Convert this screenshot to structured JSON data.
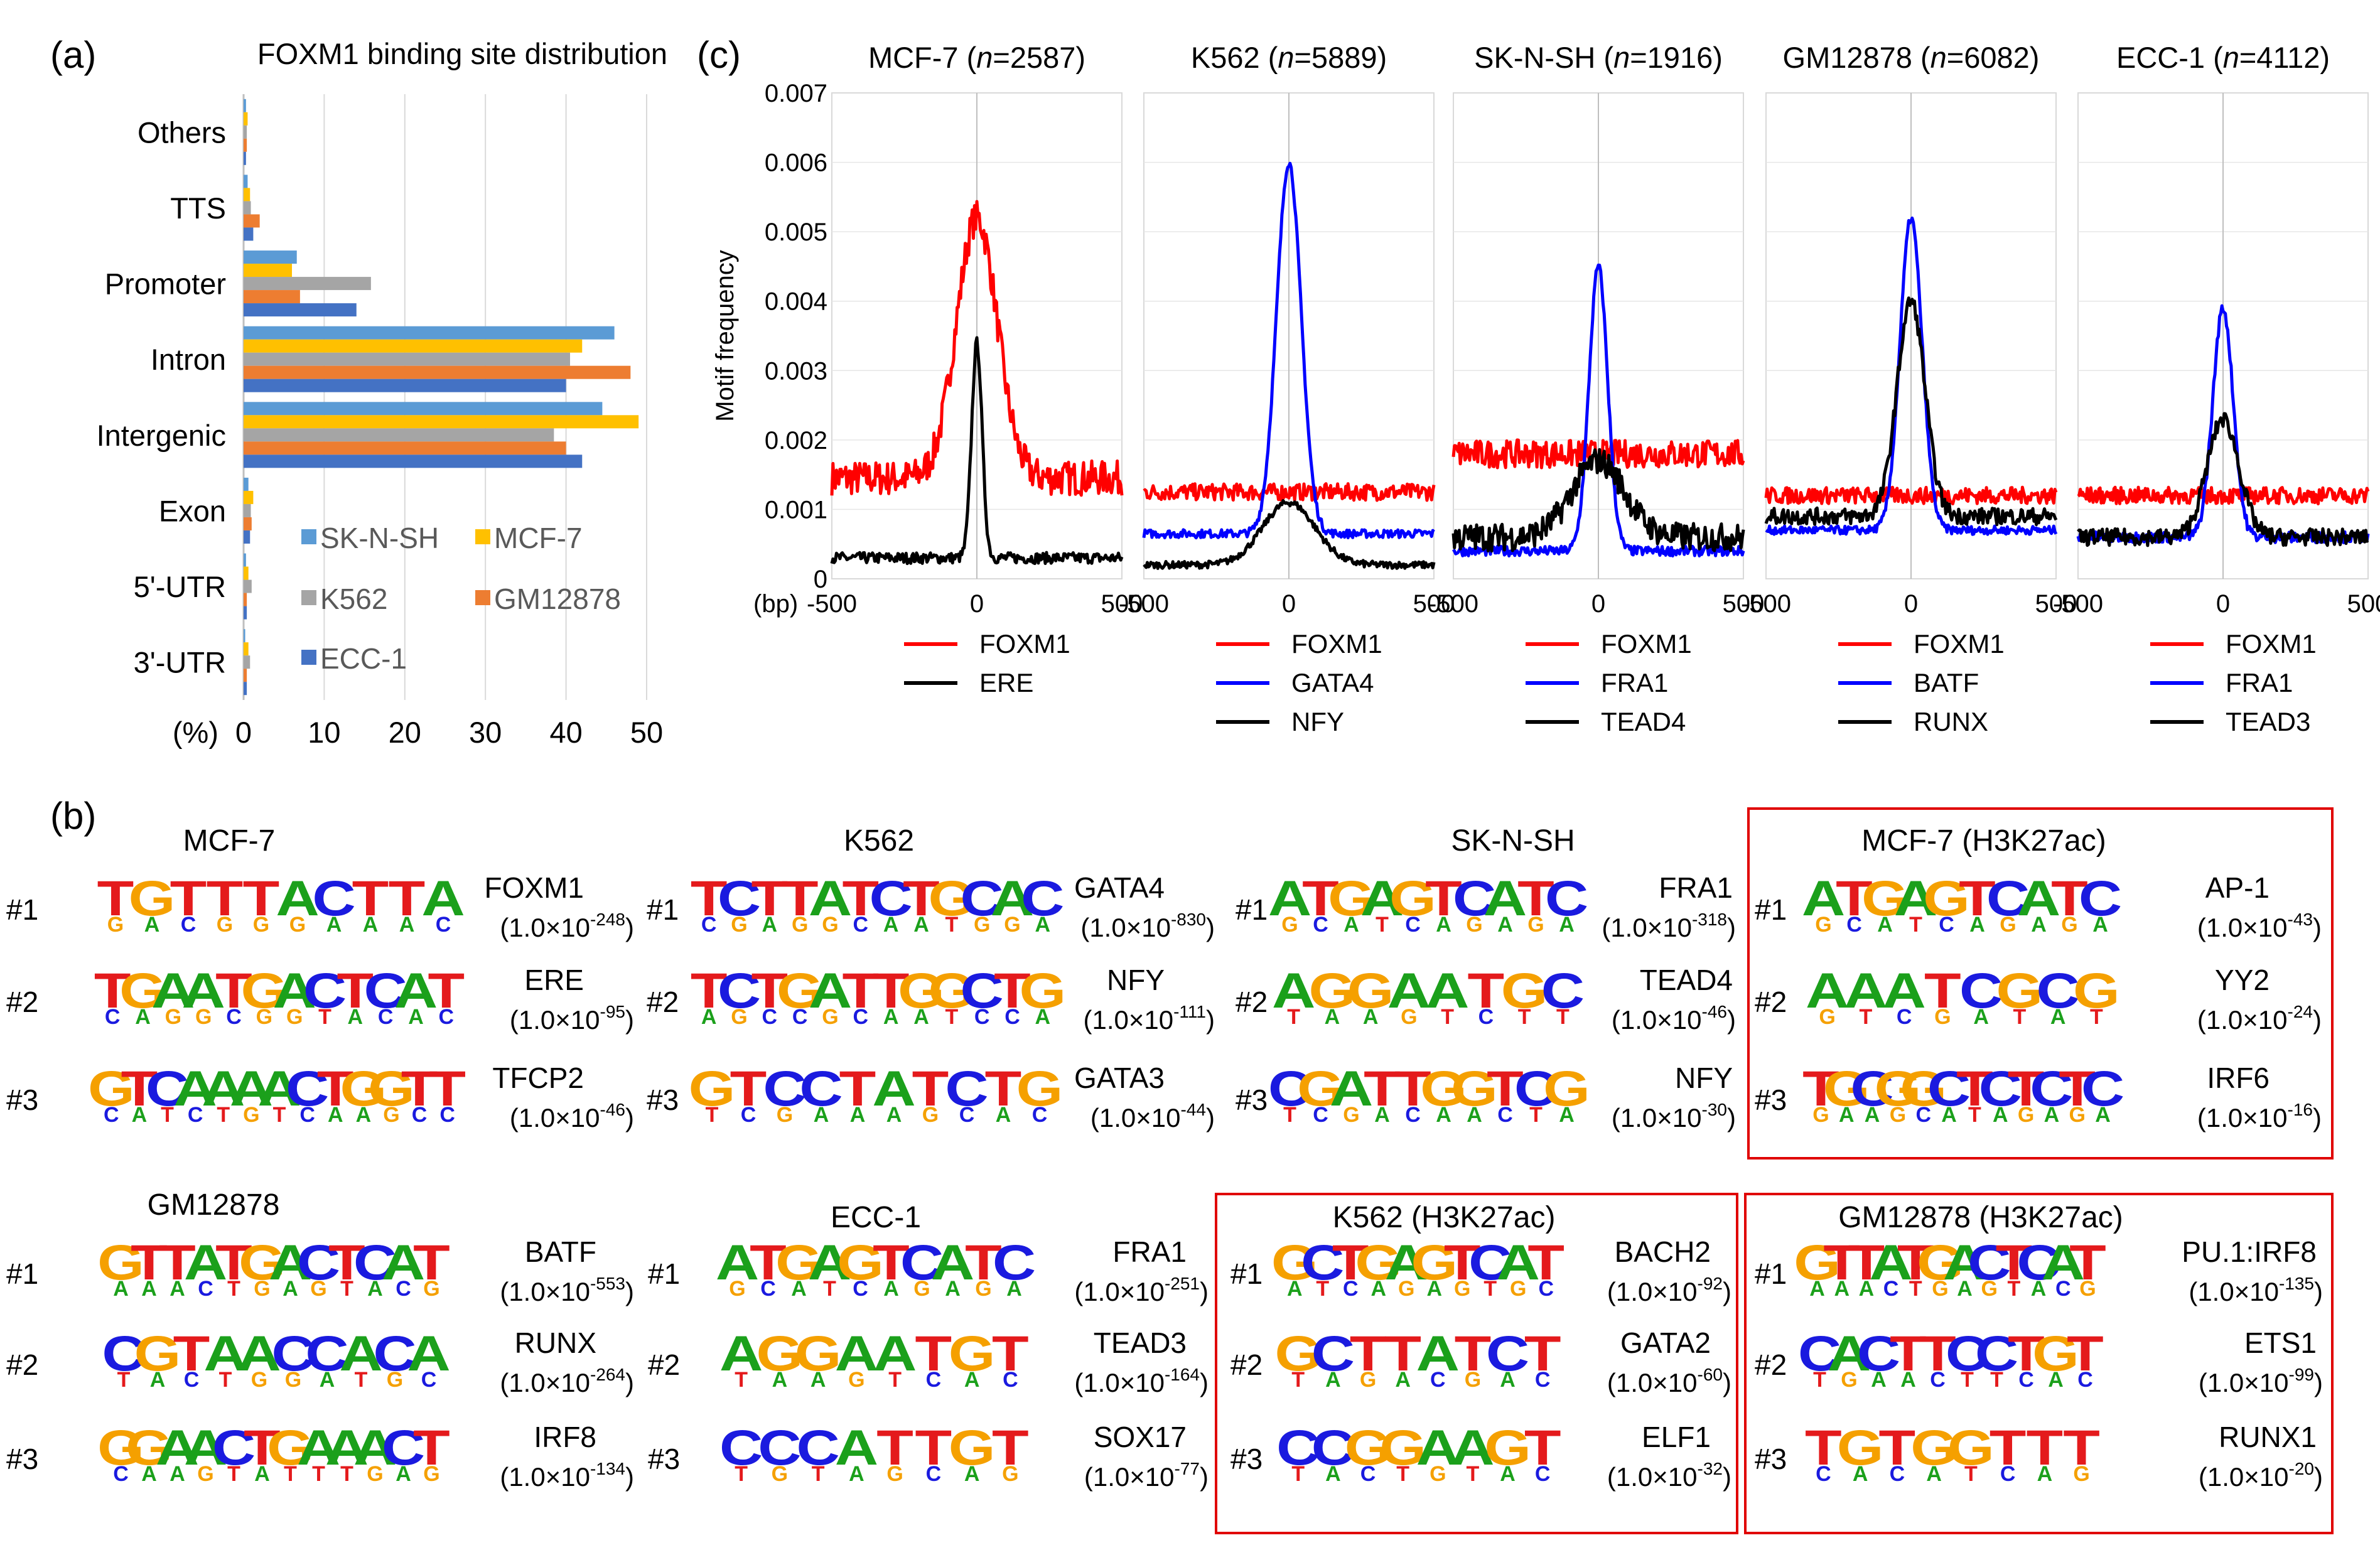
{
  "colors": {
    "SK-N-SH": "#5b9bd5",
    "MCF-7": "#ffc000",
    "K562": "#a5a5a5",
    "GM12878": "#ed7d31",
    "ECC-1": "#4472c4",
    "red": "#ff0000",
    "blue": "#0000ff",
    "black": "#000000",
    "box": "#e00000",
    "grid": "#d9d9d9",
    "A": "#1ba01b",
    "C": "#1a1adf",
    "G": "#f5a000",
    "T": "#e41a1c"
  },
  "panel_labels": {
    "a": "(a)",
    "b": "(b)",
    "c": "(c)"
  },
  "chart_data": [
    {
      "id": "a",
      "type": "bar",
      "orientation": "horizontal",
      "title": "FOXM1 binding site distribution",
      "xlabel": "(%)",
      "xlim": [
        0,
        50
      ],
      "xticks": [
        "0",
        "10",
        "20",
        "30",
        "40",
        "50"
      ],
      "categories": [
        "Others",
        "TTS",
        "Promoter",
        "Intron",
        "Intergenic",
        "Exon",
        "5'-UTR",
        "3'-UTR"
      ],
      "series": [
        {
          "name": "SK-N-SH",
          "values": [
            0.3,
            0.5,
            6.6,
            46.0,
            44.5,
            0.6,
            0.3,
            0.2
          ]
        },
        {
          "name": "MCF-7",
          "values": [
            0.5,
            0.8,
            6.0,
            42.0,
            49.0,
            1.2,
            0.6,
            0.6
          ]
        },
        {
          "name": "K562",
          "values": [
            0.4,
            0.9,
            15.8,
            40.5,
            38.5,
            0.9,
            1.0,
            0.8
          ]
        },
        {
          "name": "GM12878",
          "values": [
            0.4,
            2.0,
            7.0,
            48.0,
            40.0,
            1.0,
            0.4,
            0.4
          ]
        },
        {
          "name": "ECC-1",
          "values": [
            0.3,
            1.2,
            14.0,
            40.0,
            42.0,
            0.8,
            0.4,
            0.4
          ]
        }
      ],
      "legend": [
        "SK-N-SH",
        "MCF-7",
        "K562",
        "GM12878",
        "ECC-1"
      ]
    },
    {
      "id": "c",
      "type": "line",
      "ylabel": "Motif frequency",
      "ylim": [
        0,
        0.007
      ],
      "yticks": [
        "0",
        "0.001",
        "0.002",
        "0.003",
        "0.004",
        "0.005",
        "0.006",
        "0.007"
      ],
      "xlabel_unit": "(bp)",
      "xlim": [
        -500,
        500
      ],
      "xticks": [
        "-500",
        "0",
        "500"
      ],
      "panels": [
        {
          "title_cell": "MCF-7",
          "n_prefix": "(",
          "n_label": "n",
          "n_value": "=2587)",
          "series": [
            {
              "name": "FOXM1",
              "color": "red",
              "baseline": 0.00145,
              "peak": 0.0052,
              "width": 70,
              "noise": 0.00025
            },
            {
              "name": "ERE",
              "color": "black",
              "baseline": 0.0003,
              "peak": 0.0034,
              "width": 18,
              "noise": 8e-05
            }
          ]
        },
        {
          "title_cell": "K562",
          "n_prefix": "(",
          "n_label": "n",
          "n_value": "=5889)",
          "series": [
            {
              "name": "FOXM1",
              "color": "red",
              "baseline": 0.00125,
              "peak": 0.00125,
              "width": 80,
              "noise": 0.00012
            },
            {
              "name": "GATA4",
              "color": "blue",
              "baseline": 0.00065,
              "peak": 0.006,
              "width": 42,
              "noise": 6e-05
            },
            {
              "name": "NFY",
              "color": "black",
              "baseline": 0.0002,
              "peak": 0.0011,
              "width": 90,
              "noise": 5e-05
            }
          ]
        },
        {
          "title_cell": "SK-N-SH",
          "n_prefix": "(",
          "n_label": "n",
          "n_value": "=1916)",
          "series": [
            {
              "name": "FOXM1",
              "color": "red",
              "baseline": 0.0018,
              "peak": 0.0018,
              "width": 80,
              "noise": 0.0002
            },
            {
              "name": "FRA1",
              "color": "blue",
              "baseline": 0.0004,
              "peak": 0.0045,
              "width": 32,
              "noise": 7e-05
            },
            {
              "name": "TEAD4",
              "color": "black",
              "baseline": 0.0006,
              "peak": 0.0017,
              "width": 90,
              "noise": 0.0002
            }
          ]
        },
        {
          "title_cell": "GM12878",
          "n_prefix": "(",
          "n_label": "n",
          "n_value": "=6082)",
          "series": [
            {
              "name": "FOXM1",
              "color": "red",
              "baseline": 0.0012,
              "peak": 0.0012,
              "width": 80,
              "noise": 0.00012
            },
            {
              "name": "BATF",
              "color": "blue",
              "baseline": 0.0007,
              "peak": 0.0052,
              "width": 38,
              "noise": 6e-05
            },
            {
              "name": "RUNX",
              "color": "black",
              "baseline": 0.0009,
              "peak": 0.004,
              "width": 48,
              "noise": 0.00012
            }
          ]
        },
        {
          "title_cell": "ECC-1",
          "n_prefix": "(",
          "n_label": "n",
          "n_value": "=4112)",
          "series": [
            {
              "name": "FOXM1",
              "color": "red",
              "baseline": 0.0012,
              "peak": 0.0012,
              "width": 80,
              "noise": 0.00012
            },
            {
              "name": "FRA1",
              "color": "blue",
              "baseline": 0.0006,
              "peak": 0.0039,
              "width": 35,
              "noise": 8e-05
            },
            {
              "name": "TEAD3",
              "color": "black",
              "baseline": 0.0006,
              "peak": 0.0023,
              "width": 55,
              "noise": 0.00012
            }
          ]
        }
      ]
    }
  ],
  "motif_panels": [
    {
      "title": "MCF-7",
      "boxed": false,
      "motifs": [
        {
          "rank": "#1",
          "name": "FOXM1",
          "pval_base": "(1.0×10",
          "pval_exp": "-248",
          "pval_close": ")",
          "logo": "TGTTTACTTA",
          "under": "GACGGGAAAC"
        },
        {
          "rank": "#2",
          "name": "ERE",
          "pval_base": "(1.0×10",
          "pval_exp": "-95",
          "pval_close": ")",
          "logo": "TGAATGACTCAT",
          "under": "CAGGCGGTACAC"
        },
        {
          "rank": "#3",
          "name": "TFCP2",
          "pval_base": "(1.0×10",
          "pval_exp": "-46",
          "pval_close": ")",
          "logo": "GTCAAAACTGGTT",
          "under": "CATCTGTCAAGCC"
        }
      ]
    },
    {
      "title": "K562",
      "boxed": false,
      "motifs": [
        {
          "rank": "#1",
          "name": "GATA4",
          "pval_base": "(1.0×10",
          "pval_exp": "-830",
          "pval_close": ")",
          "logo": "TCTTATCTGCAC",
          "under": "CGAGGCAATGGA"
        },
        {
          "rank": "#2",
          "name": "NFY",
          "pval_base": "(1.0×10",
          "pval_exp": "-111",
          "pval_close": ")",
          "logo": "TCTGATTGGCTG",
          "under": "AGCCGCAATCCA"
        },
        {
          "rank": "#3",
          "name": "GATA3",
          "pval_base": "(1.0×10",
          "pval_exp": "-44",
          "pval_close": ")",
          "logo": "GTCCTATCTG",
          "under": "TCGAAAGCAC"
        }
      ]
    },
    {
      "title": "SK-N-SH",
      "boxed": false,
      "motifs": [
        {
          "rank": "#1",
          "name": "FRA1",
          "pval_base": "(1.0×10",
          "pval_exp": "-318",
          "pval_close": ")",
          "logo": "ATGAGTCATC",
          "under": "GCATCAGAGA"
        },
        {
          "rank": "#2",
          "name": "TEAD4",
          "pval_base": "(1.0×10",
          "pval_exp": "-46",
          "pval_close": ")",
          "logo": "AGGAATGC",
          "under": "TAAGTCTT"
        },
        {
          "rank": "#3",
          "name": "NFY",
          "pval_base": "(1.0×10",
          "pval_exp": "-30",
          "pval_close": ")",
          "logo": "CGATTGGTCG",
          "under": "TCGACAACTA"
        }
      ]
    },
    {
      "title": "MCF-7 (H3K27ac)",
      "boxed": true,
      "motifs": [
        {
          "rank": "#1",
          "name": "AP-1",
          "pval_base": "(1.0×10",
          "pval_exp": "-43",
          "pval_close": ")",
          "logo": "ATGAGTCATC",
          "under": "GCATCAGAGA"
        },
        {
          "rank": "#2",
          "name": "YY2",
          "pval_base": "(1.0×10",
          "pval_exp": "-24",
          "pval_close": ")",
          "logo": "AAATCGCG",
          "under": "GTCGATAT"
        },
        {
          "rank": "#3",
          "name": "IRF6",
          "pval_base": "(1.0×10",
          "pval_exp": "-16",
          "pval_close": ")",
          "logo": "TGCGGCTCTCTC",
          "under": "GAAGCATAGAGA"
        }
      ]
    },
    {
      "title": "GM12878",
      "boxed": false,
      "motifs": [
        {
          "rank": "#1",
          "name": "BATF",
          "pval_base": "(1.0×10",
          "pval_exp": "-553",
          "pval_close": ")",
          "logo": "GTTATGACTCAT",
          "under": "AAACTGAGTACG"
        },
        {
          "rank": "#2",
          "name": "RUNX",
          "pval_base": "(1.0×10",
          "pval_exp": "-264",
          "pval_close": ")",
          "logo": "CGTAACCACA",
          "under": "TACTGGATGC"
        },
        {
          "rank": "#3",
          "name": "IRF8",
          "pval_base": "(1.0×10",
          "pval_exp": "-134",
          "pval_close": ")",
          "logo": "GGAACTGAAACT",
          "under": "CAAGTATTTGAG"
        }
      ]
    },
    {
      "title": "ECC-1",
      "boxed": false,
      "motifs": [
        {
          "rank": "#1",
          "name": "FRA1",
          "pval_base": "(1.0×10",
          "pval_exp": "-251",
          "pval_close": ")",
          "logo": "ATGAGTCATC",
          "under": "GCATCAGAGA"
        },
        {
          "rank": "#2",
          "name": "TEAD3",
          "pval_base": "(1.0×10",
          "pval_exp": "-164",
          "pval_close": ")",
          "logo": "AGGAATGT",
          "under": "TAAGTCAC"
        },
        {
          "rank": "#3",
          "name": "SOX17",
          "pval_base": "(1.0×10",
          "pval_exp": "-77",
          "pval_close": ")",
          "logo": "CCCATTGT",
          "under": "TGTAGCAG"
        }
      ]
    },
    {
      "title": "K562 (H3K27ac)",
      "boxed": true,
      "motifs": [
        {
          "rank": "#1",
          "name": "BACH2",
          "pval_base": "(1.0×10",
          "pval_exp": "-92",
          "pval_close": ")",
          "logo": "GCTGAGTCAT",
          "under": "ATCAGAGTGC"
        },
        {
          "rank": "#2",
          "name": "GATA2",
          "pval_base": "(1.0×10",
          "pval_exp": "-60",
          "pval_close": ")",
          "logo": "GCTTATCT",
          "under": "TAGACGAC"
        },
        {
          "rank": "#3",
          "name": "ELF1",
          "pval_base": "(1.0×10",
          "pval_exp": "-32",
          "pval_close": ")",
          "logo": "CCGGAAGT",
          "under": "TACTGTAC"
        }
      ]
    },
    {
      "title": "GM12878 (H3K27ac)",
      "boxed": true,
      "motifs": [
        {
          "rank": "#1",
          "name": "PU.1:IRF8",
          "pval_base": "(1.0×10",
          "pval_exp": "-135",
          "pval_close": ")",
          "logo": "GTTATGACTCAT",
          "under": "AAACTGAGTACG"
        },
        {
          "rank": "#2",
          "name": "ETS1",
          "pval_base": "(1.0×10",
          "pval_exp": "-99",
          "pval_close": ")",
          "logo": "CACTTCCTGT",
          "under": "TGAACTTCAC"
        },
        {
          "rank": "#3",
          "name": "RUNX1",
          "pval_base": "(1.0×10",
          "pval_exp": "-20",
          "pval_close": ")",
          "logo": "TGTGGTTT",
          "under": "CACATCAG"
        }
      ]
    }
  ]
}
